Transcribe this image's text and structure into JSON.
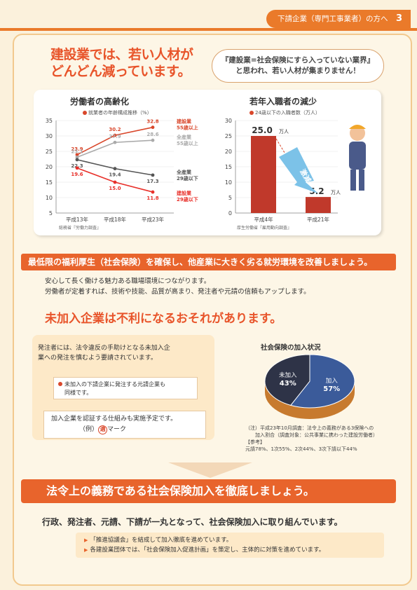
{
  "header": {
    "tab_label": "下請企業（専門工事業者）の方へ",
    "page_number": "3"
  },
  "section1": {
    "heading_line1": "建設業では、若い人材が",
    "heading_line2": "どんどん減っています。",
    "bubble_line1": "『建設業=社会保険にすら入っていない業界』",
    "bubble_line2": "と思われ、若い人材が集まりません！"
  },
  "chart_data": [
    {
      "type": "line",
      "title": "労働者の高齢化",
      "subtitle": "就業者の年齢構成推移（%）",
      "categories": [
        "平成13年",
        "平成18年",
        "平成23年"
      ],
      "ylim": [
        5,
        35
      ],
      "yticks": [
        "35",
        "30",
        "25",
        "20",
        "15",
        "10",
        "5"
      ],
      "source": "総務省『労働力調査』",
      "series": [
        {
          "name": "建設業 55歳以上",
          "values": [
            23.9,
            30.2,
            32.8
          ],
          "labels": [
            "23.9",
            "30.2",
            "32.8"
          ],
          "color": "#d9472b",
          "end_label_1": "建設業",
          "end_label_2": "55歳以上"
        },
        {
          "name": "全産業 55歳以上",
          "values": [
            23.1,
            27.9,
            28.6
          ],
          "labels": [
            "23.1",
            "27.9",
            "28.6"
          ],
          "color": "#aaaaaa",
          "end_label_1": "全産業",
          "end_label_2": "55歳以上"
        },
        {
          "name": "全産業 29歳以下",
          "values": [
            22.3,
            19.4,
            17.3
          ],
          "labels": [
            "22.3",
            "19.4",
            "17.3"
          ],
          "color": "#555555",
          "end_label_1": "全産業",
          "end_label_2": "29歳以下"
        },
        {
          "name": "建設業 29歳以下",
          "values": [
            19.6,
            15.0,
            11.8
          ],
          "labels": [
            "19.6",
            "15.0",
            "11.8"
          ],
          "color": "#e8302a",
          "end_label_1": "建設業",
          "end_label_2": "29歳以下"
        }
      ]
    },
    {
      "type": "bar",
      "title": "若年入職者の減少",
      "subtitle": "24歳以下の入職者数（万人）",
      "categories": [
        "平成4年",
        "平成21年"
      ],
      "values": [
        25.0,
        5.2
      ],
      "value_labels": [
        "25.0",
        "5.2"
      ],
      "value_unit": "万人",
      "ylim": [
        0,
        30
      ],
      "yticks": [
        "30",
        "25",
        "20",
        "15",
        "10",
        "5",
        "0"
      ],
      "annotation": "激減",
      "source": "厚生労働省『雇用動向調査』",
      "color": "#c0392b"
    },
    {
      "type": "pie",
      "title": "社会保険の加入状況",
      "slices": [
        {
          "label": "加入",
          "value": 57,
          "value_label": "57%",
          "color": "#3b5b9a"
        },
        {
          "label": "未加入",
          "value": 43,
          "value_label": "43%",
          "color": "#2e3347"
        }
      ],
      "side_color": "#c77a2e"
    }
  ],
  "banner1": "最低限の福利厚生（社会保険）を確保し、他産業に大きく劣る就労環境を改善しましょう。",
  "para1_line1": "安心して長く働ける魅力ある職場環境につながります。",
  "para1_line2": "労働者が定着すれば、技術や技能、品質が高まり、発注者や元請の信頼もアップします。",
  "section2": {
    "heading": "未加入企業は不利になるおそれがあります。",
    "box_line1": "発注者には、法令違反の手助けとなる未加入企",
    "box_line2": "業への発注を慎むよう要請されています。",
    "note_line1": "未加入の下請企業に発注する元請企業も",
    "note_line2": "同様です。",
    "cert_line": "加入企業を認証する仕組みも実施予定です。",
    "cert_example": "（例）",
    "cert_mark": "適",
    "cert_mark_label": "マーク",
    "pie_note_1": "（注）平成23年10月調査：法令上の義務がある3保険への",
    "pie_note_2": "加入割合（調査対象：公共事業に携わった建設労働者）",
    "pie_note_3": "【参考】",
    "pie_note_4": "元請78%、1次55%、2次44%、3次下請以下44%"
  },
  "banner2": "法令上の義務である社会保険加入を徹底しましょう。",
  "para2": "行政、発注者、元請、下請が一丸となって、社会保険加入に取り組んでいます。",
  "list": [
    "「推進協議会」を結成して加入徹底を進めています。",
    "各建設業団体では、「社会保険加入促進計画」を策定し、主体的に対策を進めています。"
  ]
}
